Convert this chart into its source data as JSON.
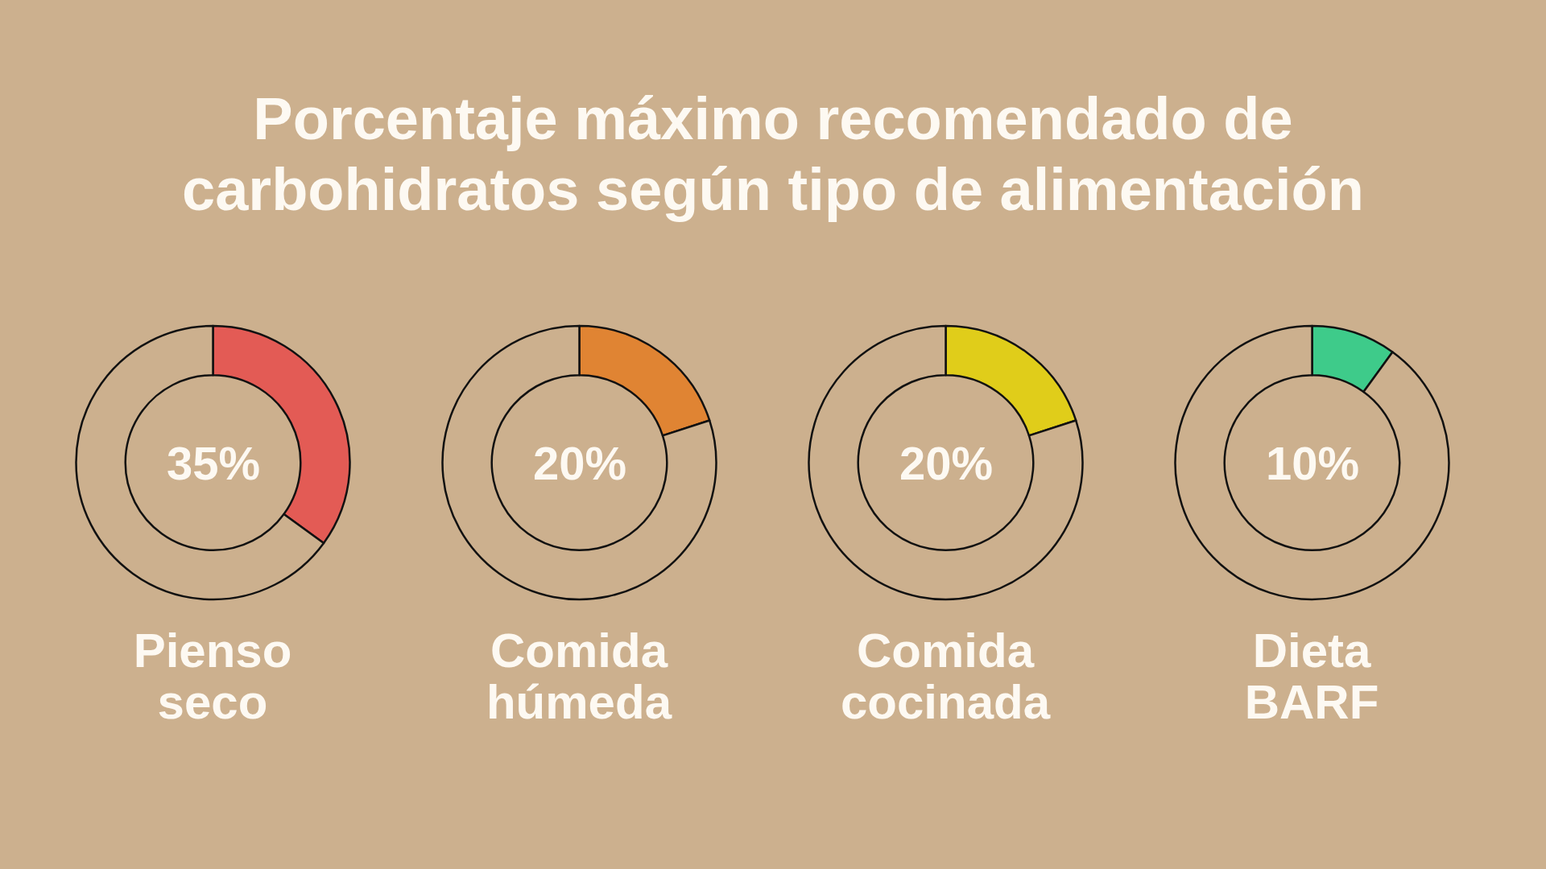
{
  "chart_data": [
    {
      "type": "donut",
      "title": "Porcentaje máximo recomendado de carbohidratos según tipo de alimentación",
      "xlabel": "Pienso seco",
      "categories": [
        null,
        null
      ],
      "values": [
        35,
        65
      ],
      "colors": [
        "#e35b55",
        "#ccb08e"
      ],
      "annotations": [
        "35%"
      ]
    },
    {
      "type": "donut",
      "xlabel": "Comida húmeda",
      "categories": [
        null,
        null
      ],
      "values": [
        20,
        80
      ],
      "colors": [
        "#e08433",
        "#ccb08e"
      ],
      "annotations": [
        "20%"
      ]
    },
    {
      "type": "donut",
      "xlabel": "Comida cocinada",
      "categories": [
        null,
        null
      ],
      "values": [
        20,
        80
      ],
      "colors": [
        "#e0cd1a",
        "#ccb08e"
      ],
      "annotations": [
        "20%"
      ]
    },
    {
      "type": "donut",
      "xlabel": "Dieta BARF",
      "categories": [
        null,
        null
      ],
      "values": [
        10,
        90
      ],
      "colors": [
        "#3ecb8a",
        "#ccb08e"
      ],
      "annotations": [
        "10%"
      ]
    }
  ]
}
